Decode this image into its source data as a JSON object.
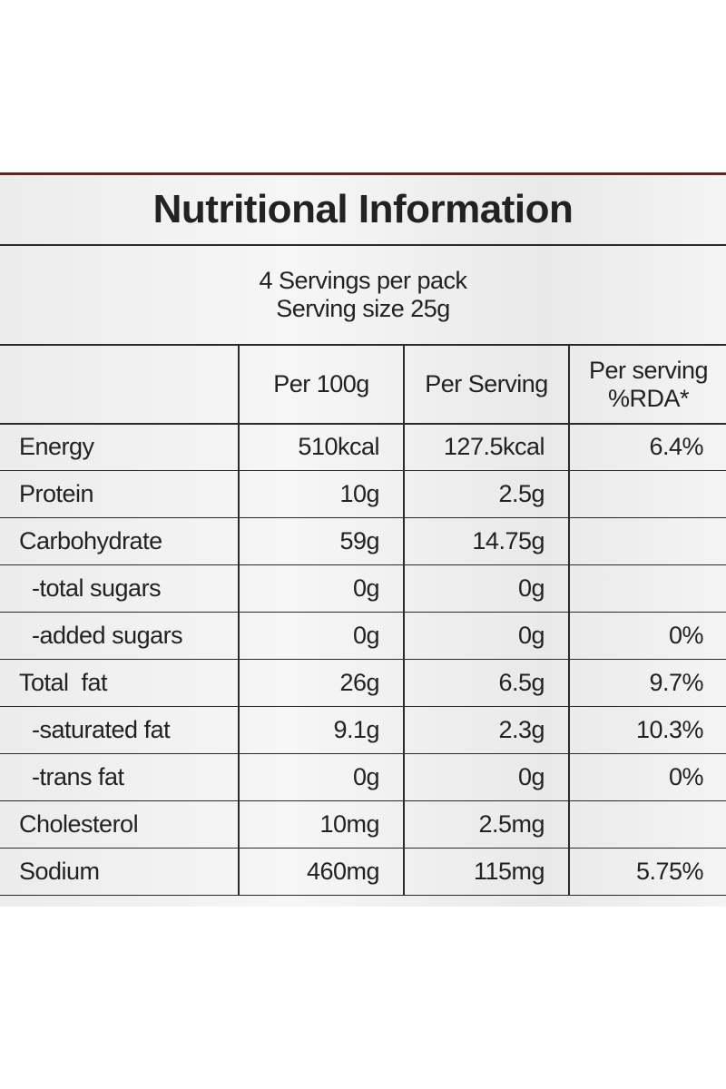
{
  "title": "Nutritional Information",
  "servings": {
    "per_pack": "4 Servings per pack",
    "size": "Serving size 25g"
  },
  "table": {
    "headers": [
      [
        "Per 100g"
      ],
      [
        "Per Serving"
      ],
      [
        "Per serving",
        "%RDA*"
      ]
    ],
    "rows": [
      [
        "Energy",
        "510kcal",
        "127.5kcal",
        "6.4%"
      ],
      [
        "Protein",
        "10g",
        "2.5g",
        null
      ],
      [
        "Carbohydrate",
        "59g",
        "14.75g",
        null
      ],
      [
        "-total sugars",
        "0g",
        "0g",
        null
      ],
      [
        "-added sugars",
        "0g",
        "0g",
        "0%"
      ],
      [
        "Total  fat",
        "26g",
        "6.5g",
        "9.7%"
      ],
      [
        "-saturated fat",
        "9.1g",
        "2.3g",
        "10.3%"
      ],
      [
        "-trans fat",
        "0g",
        "0g",
        "0%"
      ],
      [
        "Cholesterol",
        "10mg",
        "2.5mg",
        null
      ],
      [
        "Sodium",
        "460mg",
        "115mg",
        "5.75%"
      ]
    ]
  }
}
